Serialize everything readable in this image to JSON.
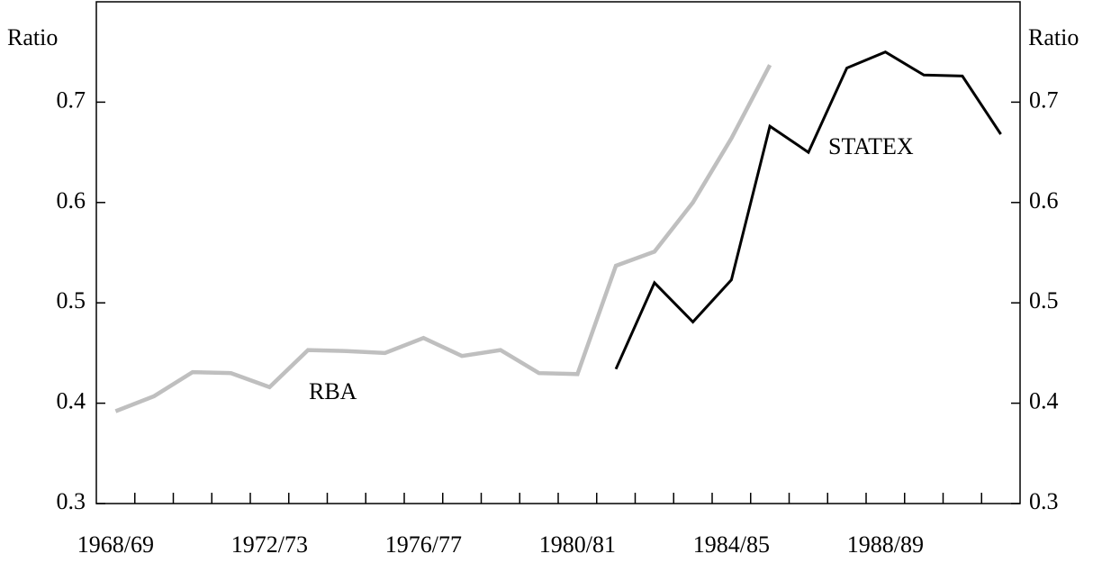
{
  "chart_data": {
    "type": "line",
    "y_label": "Ratio",
    "y2_label": "Ratio",
    "categories": [
      "1968/69",
      null,
      null,
      null,
      "1972/73",
      null,
      null,
      null,
      "1976/77",
      null,
      null,
      null,
      "1980/81",
      null,
      null,
      null,
      "1984/85",
      null,
      null,
      null,
      "1988/89",
      null,
      null,
      null
    ],
    "series": [
      {
        "name": "RBA",
        "color": "#bfbfbf",
        "values": [
          0.392,
          0.407,
          0.431,
          0.43,
          0.416,
          0.453,
          0.452,
          0.45,
          0.465,
          0.447,
          0.453,
          0.43,
          0.429,
          0.537,
          0.551,
          0.6,
          0.664,
          0.737,
          null,
          null,
          null,
          null,
          null,
          null
        ]
      },
      {
        "name": "STATEX",
        "color": "#000000",
        "values": [
          null,
          null,
          null,
          null,
          null,
          null,
          null,
          null,
          null,
          null,
          null,
          null,
          null,
          0.434,
          0.52,
          0.481,
          0.523,
          0.676,
          0.65,
          0.734,
          0.75,
          0.727,
          0.726,
          0.668
        ]
      }
    ],
    "ylim": [
      0.3,
      0.8
    ],
    "yticks": [
      0.3,
      0.4,
      0.5,
      0.6,
      0.7
    ],
    "y2lim": [
      0.3,
      0.8
    ],
    "y2ticks": [
      0.3,
      0.4,
      0.5,
      0.6,
      0.7
    ]
  }
}
